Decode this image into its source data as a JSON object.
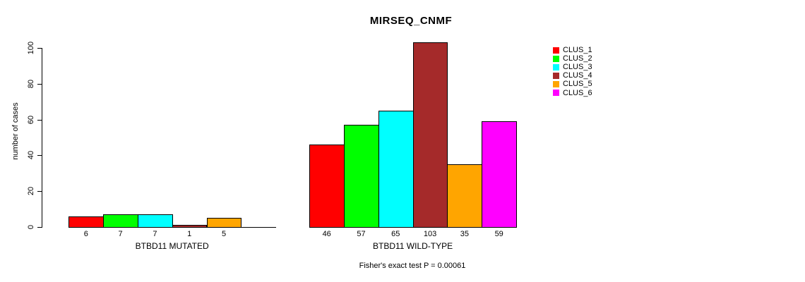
{
  "chart_data": {
    "type": "bar",
    "title": "MIRSEQ_CNMF",
    "ylabel": "number of cases",
    "xlabel": "",
    "ylim": [
      0,
      100
    ],
    "yticks": [
      0,
      20,
      40,
      60,
      80,
      100
    ],
    "grid": false,
    "categories": [
      "CLUS_1",
      "CLUS_2",
      "CLUS_3",
      "CLUS_4",
      "CLUS_5",
      "CLUS_6"
    ],
    "colors": {
      "CLUS_1": "#FF0000",
      "CLUS_2": "#00FF00",
      "CLUS_3": "#00FFFF",
      "CLUS_4": "#A52A2A",
      "CLUS_5": "#FFA500",
      "CLUS_6": "#FF00FF"
    },
    "bar_border_color": "#000000",
    "groups": [
      {
        "label": "BTBD11 MUTATED",
        "values": [
          6,
          7,
          7,
          1,
          5,
          0
        ],
        "value_labels": [
          "6",
          "7",
          "7",
          "1",
          "5",
          ""
        ]
      },
      {
        "label": "BTBD11 WILD-TYPE",
        "values": [
          46,
          57,
          65,
          103,
          35,
          59
        ],
        "value_labels": [
          "46",
          "57",
          "65",
          "103",
          "35",
          "59"
        ]
      }
    ],
    "legend": {
      "position": "right",
      "labels": [
        "CLUS_1",
        "CLUS_2",
        "CLUS_3",
        "CLUS_4",
        "CLUS_5",
        "CLUS_6"
      ]
    },
    "annotation": "Fisher's exact test P = 0.00061"
  }
}
